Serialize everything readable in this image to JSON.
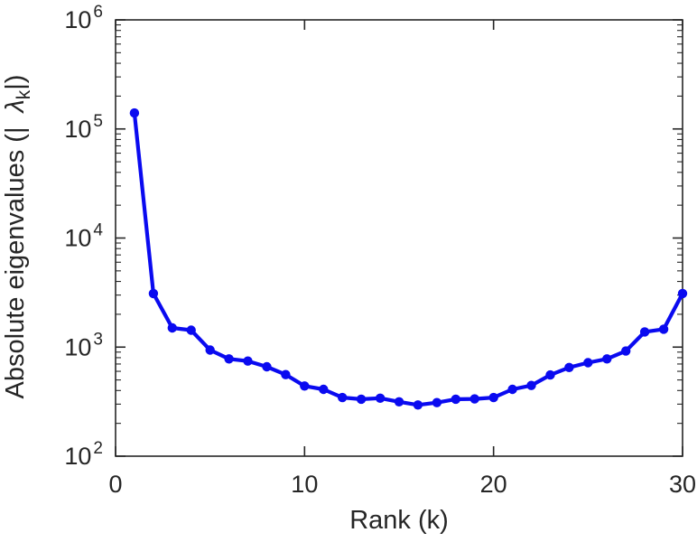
{
  "figure": {
    "background": "#ffffff"
  },
  "colors": {
    "line": "#0a0af0",
    "marker": "#0a0af0",
    "axis": "#262626",
    "tick_label": "#262626"
  },
  "chart_data": {
    "type": "line",
    "title": "",
    "xlabel": "Rank (k)",
    "ylabel": "Absolute eigenvalues (| λ_k |)",
    "ylabel_parts": {
      "prefix": "Absolute eigenvalues (|",
      "lambda": "λ",
      "subscript": "k",
      "suffix": "|)"
    },
    "yscale": "log",
    "grid": false,
    "legend": null,
    "marker": "filled-circle",
    "xlim": [
      0,
      30
    ],
    "ylim": [
      100,
      1000000
    ],
    "x_ticks": [
      "0",
      "10",
      "20",
      "30"
    ],
    "x_tick_values": [
      0,
      10,
      20,
      30
    ],
    "y_tick_base": "10",
    "y_tick_exponents": [
      "2",
      "3",
      "4",
      "5",
      "6"
    ],
    "y_tick_exponent_values": [
      2,
      3,
      4,
      5,
      6
    ],
    "x": [
      1,
      2,
      3,
      4,
      5,
      6,
      7,
      8,
      9,
      10,
      11,
      12,
      13,
      14,
      15,
      16,
      17,
      18,
      19,
      20,
      21,
      22,
      23,
      24,
      25,
      26,
      27,
      28,
      29,
      30
    ],
    "values": [
      140000,
      3100,
      1500,
      1430,
      940,
      780,
      745,
      660,
      560,
      440,
      410,
      345,
      333,
      340,
      315,
      295,
      310,
      333,
      335,
      345,
      410,
      445,
      555,
      650,
      720,
      780,
      920,
      1380,
      1460,
      3100
    ]
  }
}
